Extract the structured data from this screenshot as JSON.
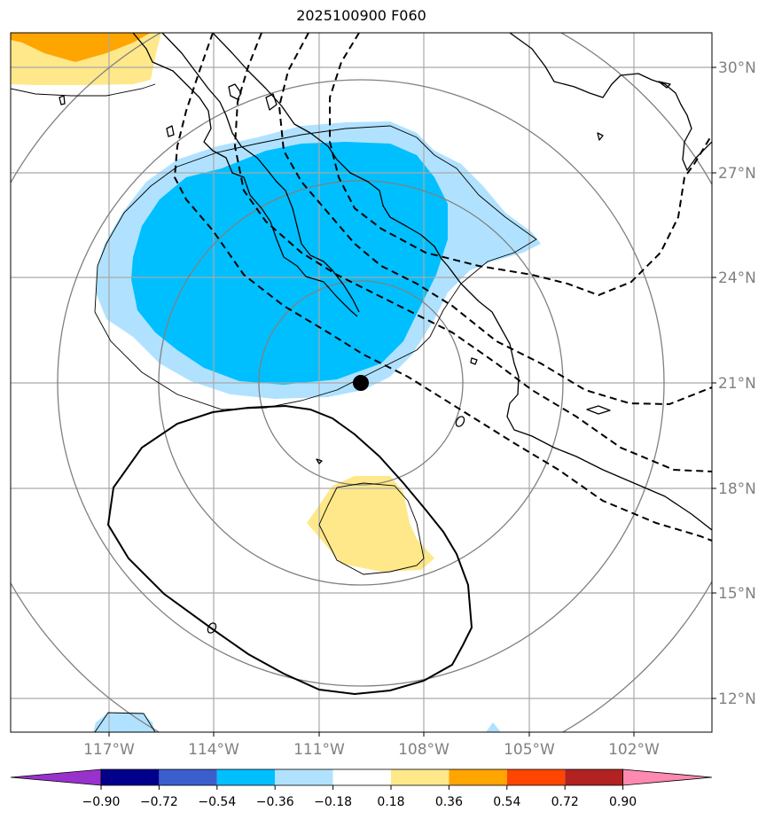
{
  "title": "2025100900 F060",
  "lat_labels": [
    "30°N",
    "27°N",
    "24°N",
    "21°N",
    "18°N",
    "15°N",
    "12°N"
  ],
  "lon_labels": [
    "117°W",
    "114°W",
    "111°W",
    "108°W",
    "105°W",
    "102°W"
  ],
  "colorbar": {
    "ticks": [
      "−0.90",
      "−0.72",
      "−0.54",
      "−0.36",
      "−0.18",
      "0.18",
      "0.36",
      "0.54",
      "0.72",
      "0.90"
    ],
    "colors": [
      "#9932cc",
      "#00008b",
      "#3a5fcd",
      "#00bfff",
      "#b0e2ff",
      "#ffffff",
      "#ffe88a",
      "#ffa500",
      "#ff4500",
      "#b22222",
      "#ff89b0"
    ]
  },
  "colors": {
    "grid": "#a9a9a9",
    "range_rings": "#808080",
    "label_gray": "#808080",
    "coast": "#000000"
  },
  "marker": {
    "name": "storm-center",
    "lat": 21.0,
    "lon": -109.9
  }
}
